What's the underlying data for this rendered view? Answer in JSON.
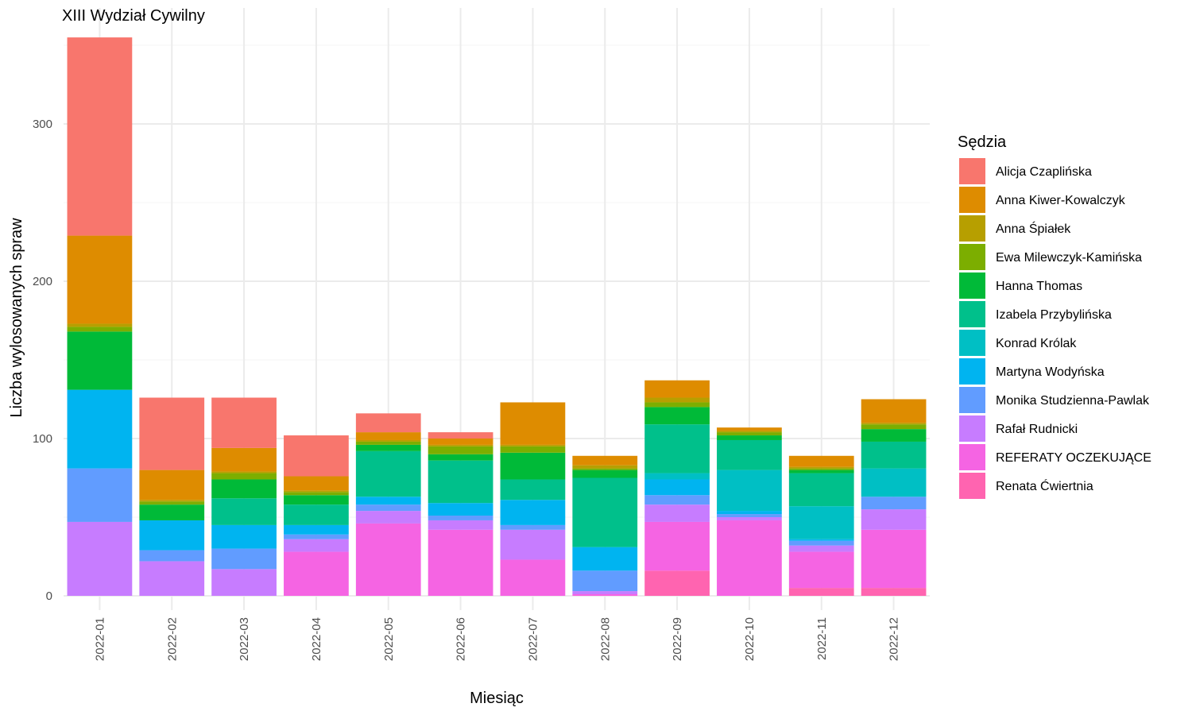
{
  "chart_data": {
    "type": "bar",
    "stacked": true,
    "title": "XIII Wydział Cywilny",
    "xlabel": "Miesiąc",
    "ylabel": "Liczba wylosowanych spraw",
    "legend_title": "Sędzia",
    "legend_position": "right",
    "grid": true,
    "ylim": [
      0,
      360
    ],
    "y_ticks": [
      0,
      100,
      200,
      300
    ],
    "categories": [
      "2022-01",
      "2022-02",
      "2022-03",
      "2022-04",
      "2022-05",
      "2022-06",
      "2022-07",
      "2022-08",
      "2022-09",
      "2022-10",
      "2022-11",
      "2022-12"
    ],
    "stack_order_bottom_to_top": [
      "Renata Ćwiertnia",
      "REFERATY OCZEKUJĄCE",
      "Rafał Rudnicki",
      "Monika Studzienna-Pawlak",
      "Martyna Wodyńska",
      "Konrad Królak",
      "Izabela Przybylińska",
      "Hanna Thomas",
      "Ewa Milewczyk-Kamińska",
      "Anna Śpiałek",
      "Anna Kiwer-Kowalczyk",
      "Alicja Czaplińska"
    ],
    "series": [
      {
        "name": "Alicja Czaplińska",
        "color": "#F8766D",
        "values": [
          126,
          46,
          32,
          26,
          12,
          4,
          0,
          0,
          0,
          0,
          0,
          0
        ]
      },
      {
        "name": "Anna Kiwer-Kowalczyk",
        "color": "#DE8C00",
        "values": [
          56,
          19,
          15,
          9,
          5,
          4,
          27,
          6,
          11,
          2,
          7,
          15
        ]
      },
      {
        "name": "Anna Śpiałek",
        "color": "#B79F00",
        "values": [
          2,
          1,
          1,
          1,
          1,
          1,
          1,
          2,
          3,
          1,
          1,
          1
        ]
      },
      {
        "name": "Ewa Milewczyk-Kamińska",
        "color": "#7CAE00",
        "values": [
          3,
          2,
          4,
          2,
          2,
          5,
          4,
          1,
          3,
          2,
          1,
          3
        ]
      },
      {
        "name": "Hanna Thomas",
        "color": "#00BA38",
        "values": [
          37,
          10,
          12,
          6,
          4,
          4,
          17,
          5,
          11,
          3,
          2,
          8
        ]
      },
      {
        "name": "Izabela Przybylińska",
        "color": "#00C08B",
        "values": [
          0,
          0,
          17,
          13,
          29,
          27,
          13,
          44,
          31,
          19,
          21,
          17
        ]
      },
      {
        "name": "Konrad Królak",
        "color": "#00BFC4",
        "values": [
          0,
          0,
          0,
          0,
          0,
          0,
          0,
          0,
          4,
          26,
          21,
          18
        ]
      },
      {
        "name": "Martyna Wodyńska",
        "color": "#00B4F0",
        "values": [
          50,
          19,
          15,
          6,
          5,
          8,
          16,
          15,
          10,
          2,
          1,
          0
        ]
      },
      {
        "name": "Monika Studzienna-Pawlak",
        "color": "#619CFF",
        "values": [
          34,
          7,
          13,
          3,
          4,
          3,
          3,
          13,
          6,
          2,
          3,
          8
        ]
      },
      {
        "name": "Rafał Rudnicki",
        "color": "#C77CFF",
        "values": [
          47,
          22,
          17,
          8,
          8,
          6,
          19,
          2,
          11,
          2,
          4,
          13
        ]
      },
      {
        "name": "REFERATY OCZEKUJĄCE",
        "color": "#F564E3",
        "values": [
          0,
          0,
          0,
          28,
          46,
          42,
          23,
          1,
          31,
          48,
          23,
          37
        ]
      },
      {
        "name": "Renata Ćwiertnia",
        "color": "#FF64B0",
        "values": [
          0,
          0,
          0,
          0,
          0,
          0,
          0,
          0,
          16,
          0,
          5,
          5
        ]
      }
    ]
  }
}
